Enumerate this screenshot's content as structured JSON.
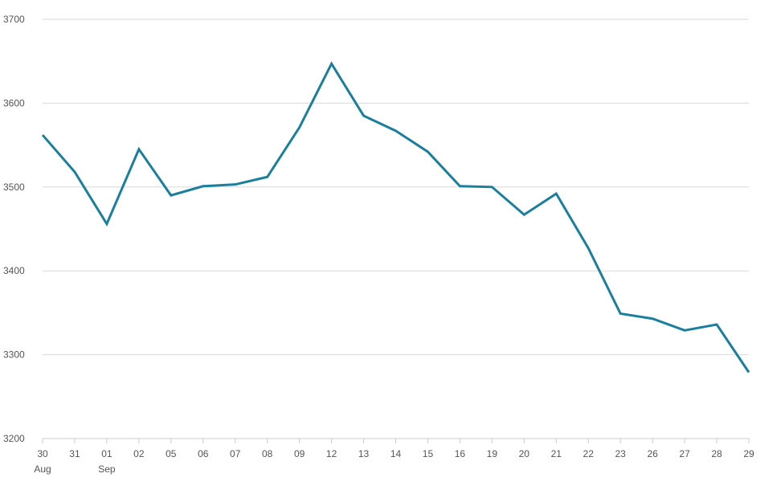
{
  "chart_data": {
    "type": "line",
    "title": "",
    "xlabel": "",
    "ylabel": "",
    "x": [
      "30",
      "31",
      "01",
      "02",
      "05",
      "06",
      "07",
      "08",
      "09",
      "12",
      "13",
      "14",
      "15",
      "16",
      "19",
      "20",
      "21",
      "22",
      "23",
      "26",
      "27",
      "28",
      "29"
    ],
    "x_sublabels": [
      {
        "label": "30",
        "sub": "Aug"
      },
      {
        "label": "01",
        "sub": "Sep"
      }
    ],
    "series": [
      {
        "color": "#1a7f9e",
        "values": [
          3562,
          3518,
          3456,
          3545,
          3490,
          3501,
          3503,
          3512,
          3571,
          3647,
          3585,
          3567,
          3542,
          3501,
          3500,
          3467,
          3492,
          3427,
          3349,
          3343,
          3329,
          3336,
          3279
        ]
      }
    ],
    "ylim": [
      3200,
      3700
    ],
    "yticks": [
      3200,
      3300,
      3400,
      3500,
      3600,
      3700
    ],
    "grid": true,
    "legend": "none"
  }
}
